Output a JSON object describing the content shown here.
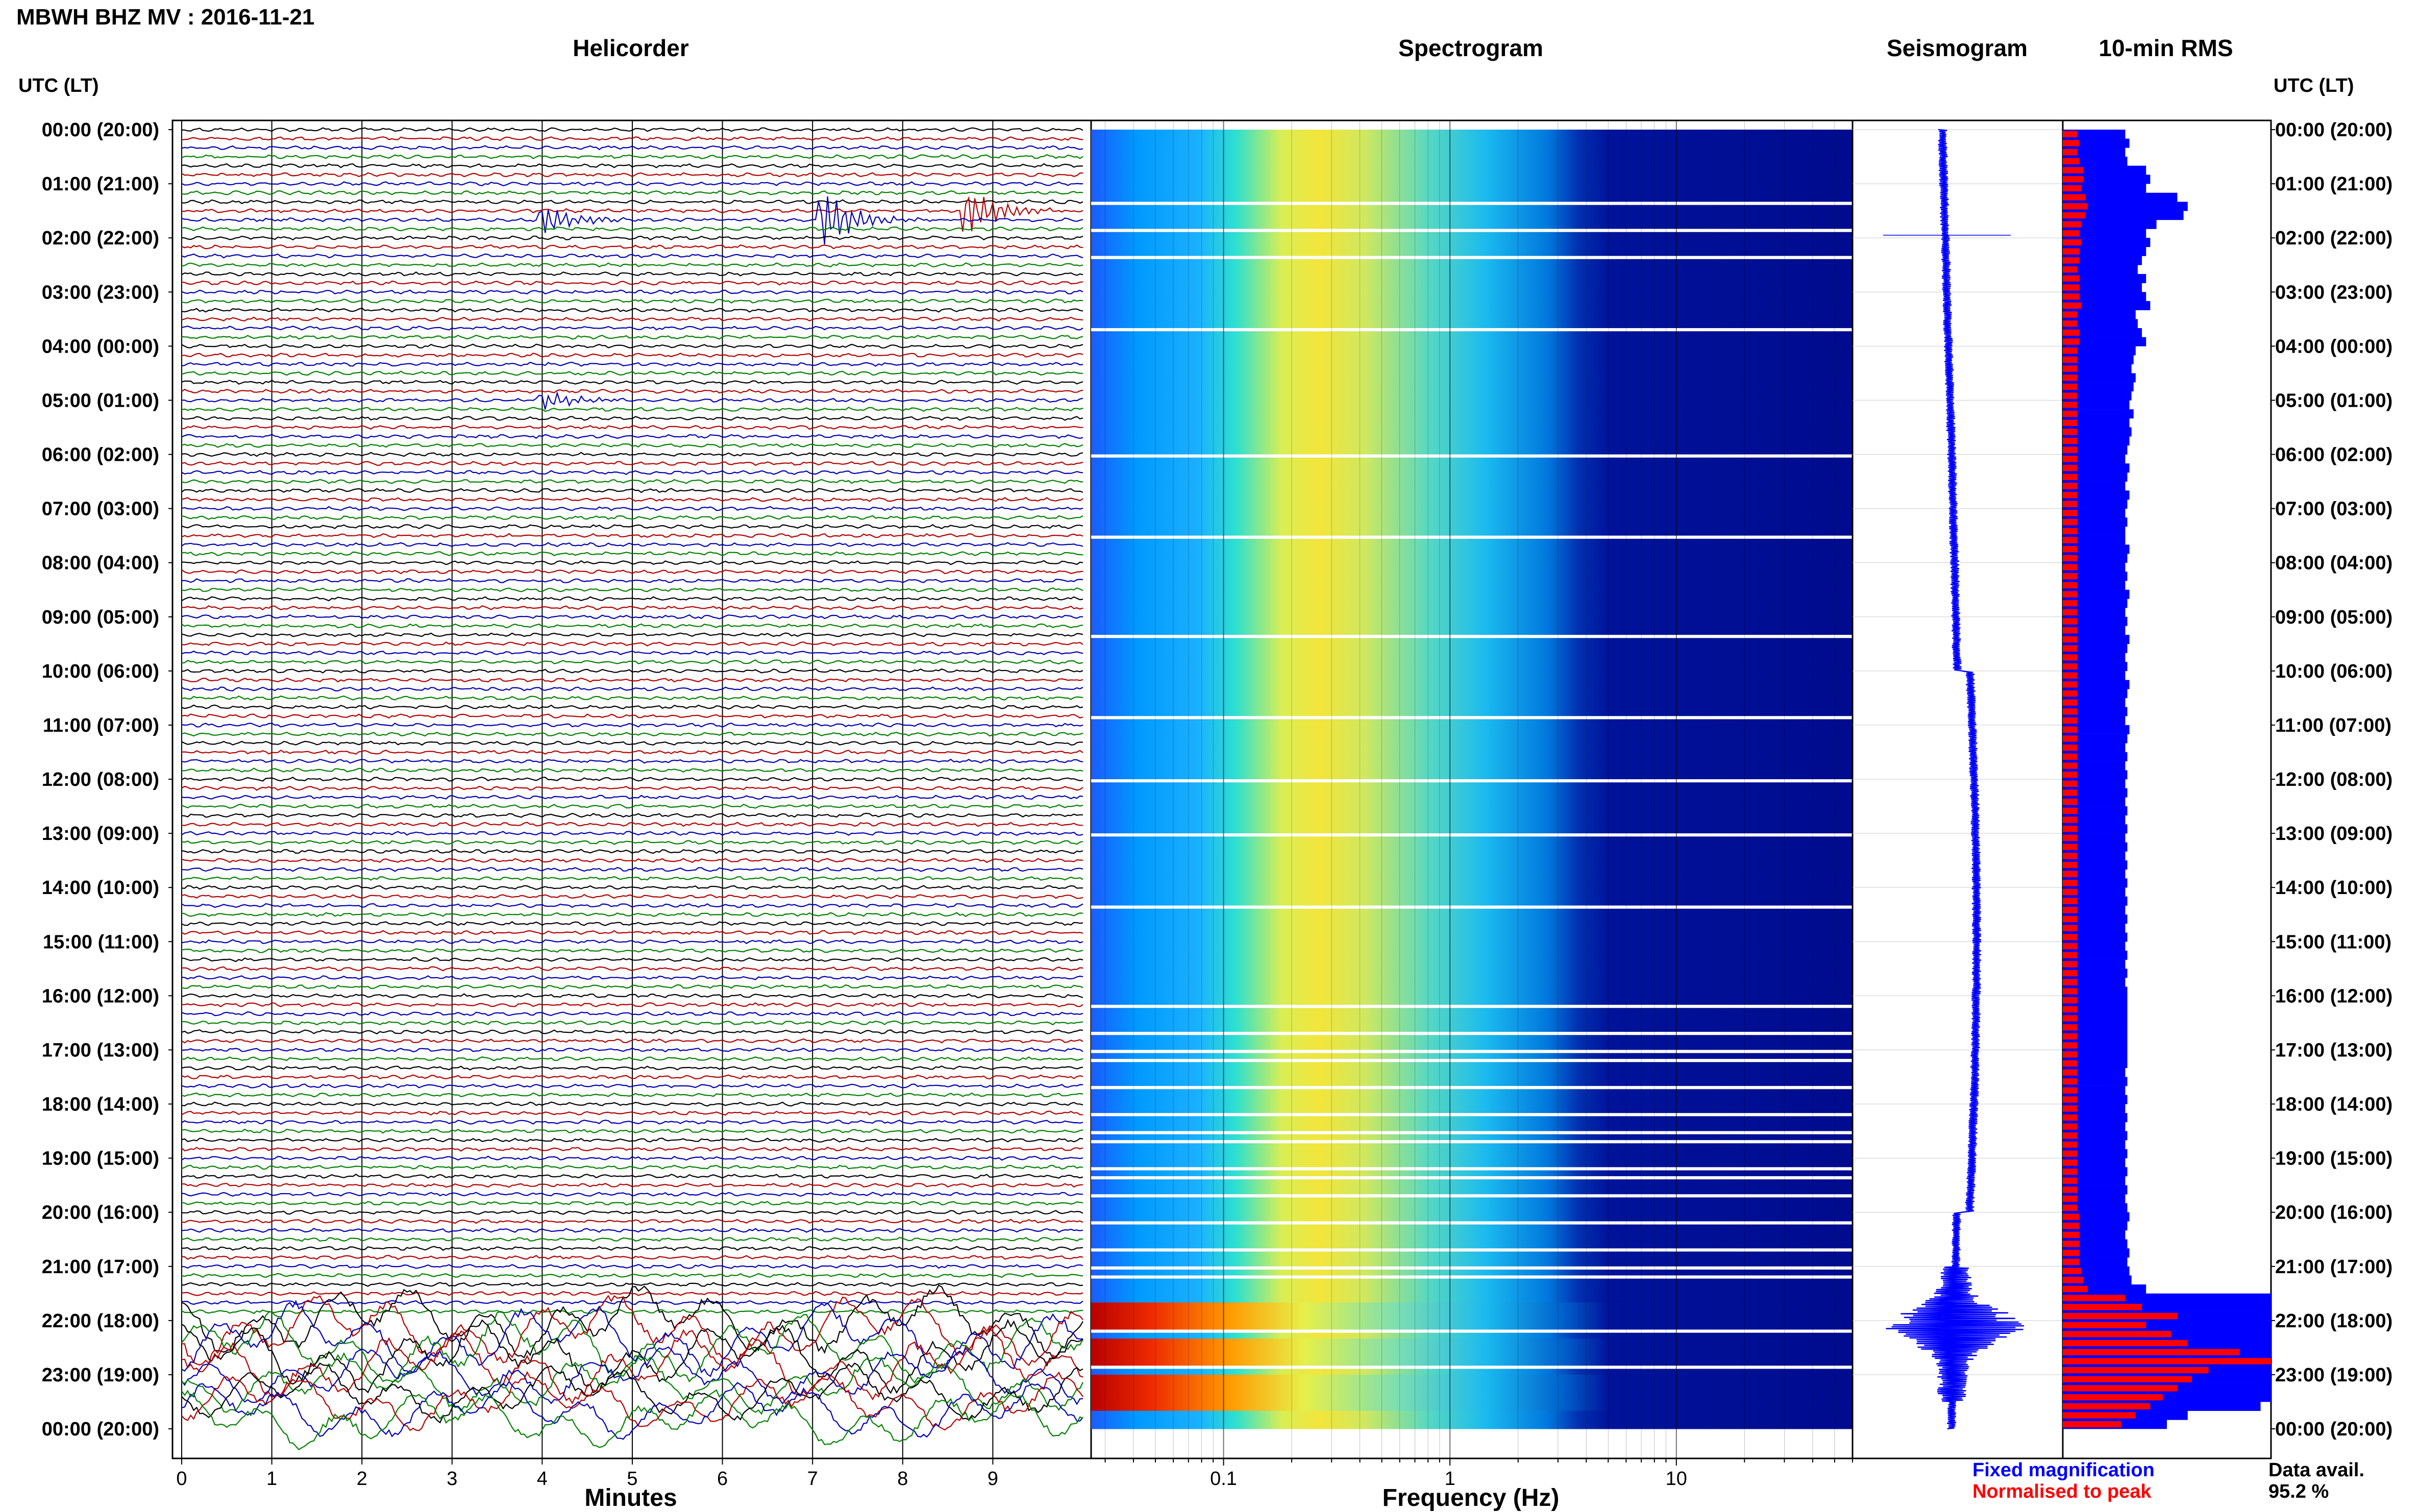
{
  "title": "MBWH BHZ MV : 2016-11-21",
  "panels": {
    "helicorder": "Helicorder",
    "spectrogram": "Spectrogram",
    "seismogram": "Seismogram",
    "rms": "10-min RMS"
  },
  "time_axis": {
    "header_left": "UTC (LT)",
    "header_right": "UTC (LT)",
    "labels": [
      "00:00 (20:00)",
      "01:00 (21:00)",
      "02:00 (22:00)",
      "03:00 (23:00)",
      "04:00 (00:00)",
      "05:00 (01:00)",
      "06:00 (02:00)",
      "07:00 (03:00)",
      "08:00 (04:00)",
      "09:00 (05:00)",
      "10:00 (06:00)",
      "11:00 (07:00)",
      "12:00 (08:00)",
      "13:00 (09:00)",
      "14:00 (10:00)",
      "15:00 (11:00)",
      "16:00 (12:00)",
      "17:00 (13:00)",
      "18:00 (14:00)",
      "19:00 (15:00)",
      "20:00 (16:00)",
      "21:00 (17:00)",
      "22:00 (18:00)",
      "23:00 (19:00)",
      "00:00 (20:00)"
    ]
  },
  "helicorder_axis": {
    "xlabel": "Minutes",
    "ticks": [
      "0",
      "1",
      "2",
      "3",
      "4",
      "5",
      "6",
      "7",
      "8",
      "9"
    ],
    "trace_colors": [
      "#000000",
      "#b30000",
      "#0000b3",
      "#008000"
    ]
  },
  "spectrogram_axis": {
    "xlabel": "Frequency (Hz)",
    "ticks": [
      "0.1",
      "1",
      "10"
    ],
    "scale": "log"
  },
  "legend": {
    "fixed": "Fixed magnification",
    "normalised": "Normalised to peak",
    "fixed_color": "#0000ff",
    "normalised_color": "#ff0000"
  },
  "availability": {
    "label": "Data avail.",
    "value": "95.2 %"
  },
  "chart_data": {
    "type": "bar",
    "title": "10-min RMS",
    "categories_unit": "UTC hour of day",
    "series": [
      {
        "name": "Fixed magnification",
        "values": [
          0.3,
          0.32,
          0.3,
          0.31,
          0.4,
          0.42,
          0.4,
          0.55,
          0.6,
          0.58,
          0.45,
          0.4,
          0.42,
          0.4,
          0.38,
          0.36,
          0.4,
          0.38,
          0.4,
          0.42,
          0.35,
          0.36,
          0.38,
          0.4,
          0.35,
          0.34,
          0.33,
          0.35,
          0.34,
          0.33,
          0.32,
          0.34,
          0.32,
          0.33,
          0.32,
          0.31,
          0.3,
          0.32,
          0.31,
          0.3,
          0.32,
          0.31,
          0.3,
          0.31,
          0.3,
          0.3,
          0.32,
          0.31,
          0.3,
          0.31,
          0.3,
          0.32,
          0.31,
          0.3,
          0.31,
          0.3,
          0.32,
          0.31,
          0.3,
          0.31,
          0.3,
          0.32,
          0.31,
          0.3,
          0.31,
          0.3,
          0.32,
          0.31,
          0.3,
          0.31,
          0.3,
          0.31,
          0.3,
          0.31,
          0.3,
          0.31,
          0.3,
          0.31,
          0.3,
          0.31,
          0.3,
          0.31,
          0.3,
          0.31,
          0.3,
          0.31,
          0.3,
          0.31,
          0.3,
          0.31,
          0.3,
          0.31,
          0.3,
          0.31,
          0.3,
          0.31,
          0.31,
          0.31,
          0.31,
          0.31,
          0.31,
          0.31,
          0.31,
          0.31,
          0.3,
          0.31,
          0.3,
          0.31,
          0.3,
          0.31,
          0.3,
          0.31,
          0.3,
          0.31,
          0.3,
          0.31,
          0.3,
          0.31,
          0.3,
          0.31,
          0.32,
          0.31,
          0.3,
          0.31,
          0.32,
          0.31,
          0.32,
          0.33,
          0.4,
          1.0,
          1.0,
          1.0,
          1.0,
          1.0,
          1.0,
          1.0,
          1.0,
          1.0,
          1.0,
          1.0,
          1.0,
          0.95,
          0.6,
          0.5
        ],
        "color": "#0000ff"
      },
      {
        "name": "Normalised to peak",
        "values": [
          0.07,
          0.08,
          0.07,
          0.08,
          0.1,
          0.1,
          0.09,
          0.11,
          0.12,
          0.11,
          0.09,
          0.08,
          0.09,
          0.08,
          0.08,
          0.07,
          0.08,
          0.08,
          0.08,
          0.09,
          0.07,
          0.07,
          0.08,
          0.08,
          0.07,
          0.07,
          0.07,
          0.07,
          0.07,
          0.07,
          0.07,
          0.07,
          0.07,
          0.07,
          0.07,
          0.07,
          0.07,
          0.07,
          0.07,
          0.07,
          0.07,
          0.07,
          0.07,
          0.07,
          0.07,
          0.07,
          0.07,
          0.07,
          0.07,
          0.07,
          0.07,
          0.07,
          0.07,
          0.07,
          0.07,
          0.07,
          0.07,
          0.07,
          0.07,
          0.07,
          0.07,
          0.07,
          0.07,
          0.07,
          0.07,
          0.07,
          0.07,
          0.07,
          0.07,
          0.07,
          0.07,
          0.07,
          0.07,
          0.07,
          0.07,
          0.07,
          0.07,
          0.07,
          0.07,
          0.07,
          0.07,
          0.07,
          0.07,
          0.07,
          0.07,
          0.07,
          0.07,
          0.07,
          0.07,
          0.07,
          0.07,
          0.07,
          0.07,
          0.07,
          0.07,
          0.07,
          0.07,
          0.07,
          0.07,
          0.07,
          0.07,
          0.07,
          0.07,
          0.07,
          0.07,
          0.07,
          0.07,
          0.07,
          0.07,
          0.07,
          0.07,
          0.07,
          0.07,
          0.07,
          0.07,
          0.07,
          0.07,
          0.07,
          0.07,
          0.07,
          0.08,
          0.08,
          0.08,
          0.08,
          0.08,
          0.08,
          0.09,
          0.1,
          0.12,
          0.3,
          0.38,
          0.55,
          0.4,
          0.52,
          0.6,
          0.85,
          1.0,
          0.7,
          0.62,
          0.55,
          0.48,
          0.42,
          0.35,
          0.28
        ],
        "color": "#ff0000"
      }
    ],
    "events": [
      {
        "utc_hour": 1.6,
        "minute": 4.0,
        "strength": 0.5
      },
      {
        "utc_hour": 1.6,
        "minute": 7.1,
        "strength": 1.0
      },
      {
        "utc_hour": 1.45,
        "minute": 8.7,
        "strength": 0.8
      },
      {
        "utc_hour": 5.0,
        "minute": 4.0,
        "strength": 0.3
      }
    ],
    "noise_level_by_hour": [
      1,
      1,
      1,
      1,
      1,
      1,
      1,
      1,
      1,
      1,
      1,
      1,
      1,
      1,
      1,
      1,
      1,
      1,
      1,
      1,
      1,
      1,
      5,
      4,
      1
    ]
  }
}
